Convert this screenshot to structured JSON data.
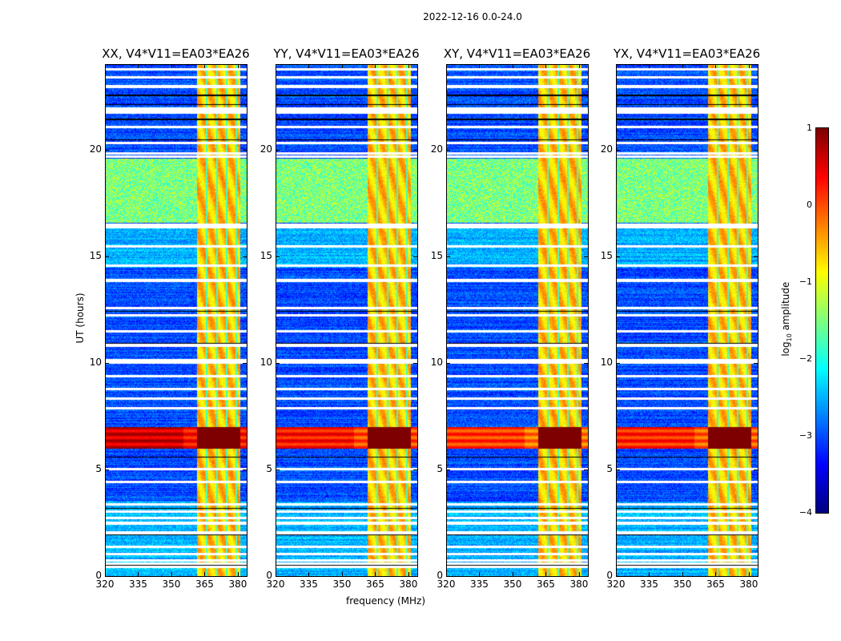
{
  "chart_data": {
    "type": "heatmap",
    "title": "2022-12-16 0.0-24.0",
    "xlabel": "frequency (MHz)",
    "ylabel": "UT (hours)",
    "xlim": [
      320,
      384
    ],
    "ylim": [
      0,
      24
    ],
    "xticks": [
      320,
      335,
      350,
      365,
      380
    ],
    "yticks": [
      0,
      5,
      10,
      15,
      20
    ],
    "panels": [
      {
        "title": "XX, V4*V11=EA03*EA26",
        "storm_level": 0.6
      },
      {
        "title": "YY, V4*V11=EA03*EA26",
        "storm_level": 0.3
      },
      {
        "title": "XY, V4*V11=EA03*EA26",
        "storm_level": 0.1
      },
      {
        "title": "YX, V4*V11=EA03*EA26",
        "storm_level": 0.2
      }
    ],
    "colorbar": {
      "label": "log10 amplitude",
      "label_main": "log",
      "label_sub": "10",
      "label_rest": " amplitude",
      "range": [
        -4,
        1
      ],
      "ticks": [
        "1",
        "0",
        "−1",
        "−2",
        "−3",
        "−4"
      ],
      "colormap": "jet"
    },
    "features": {
      "background_level": -3,
      "rfi_band_mhz": [
        361.3,
        380.8
      ],
      "rfi_level": -0.6,
      "rfi_gaps_mhz": [
        365.6,
        370.3,
        374.8,
        379.0
      ],
      "noisy_period_hours": [
        16.6,
        19.6
      ],
      "noisy_level": -1.5,
      "storm_hours": [
        6.0,
        7.0
      ],
      "flagged_hours": [
        0.45,
        0.6,
        0.75,
        1.05,
        1.4,
        2.05,
        2.5,
        2.75,
        3.05,
        3.4,
        4.45,
        5.05,
        7.9,
        8.35,
        8.8,
        9.4,
        10.05,
        10.15,
        10.85,
        11.5,
        12.25,
        12.6,
        13.9,
        14.6,
        15.5,
        16.4,
        16.5,
        19.7,
        19.85,
        20.35,
        21.1,
        21.8,
        21.95,
        23.0,
        23.45,
        23.8
      ],
      "dark_lines_hours": [
        0.55,
        1.95,
        3.2,
        4.4,
        5.6,
        10.95,
        12.45,
        20.5,
        21.45,
        22.15,
        22.6
      ]
    }
  }
}
